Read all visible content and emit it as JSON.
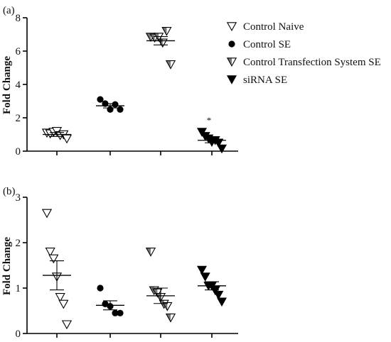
{
  "legend": [
    {
      "label": "Control Naive",
      "marker": "triangle-down-open"
    },
    {
      "label": "Control SE",
      "marker": "circle-filled"
    },
    {
      "label": "Control Transfection System SE",
      "marker": "triangle-down-half"
    },
    {
      "label": "siRNA SE",
      "marker": "triangle-down-filled"
    }
  ],
  "chart_data": [
    {
      "panel": "(a)",
      "type": "scatter",
      "ylabel": "Fold Change",
      "ylim": [
        0,
        8
      ],
      "yticks": [
        0,
        2,
        4,
        6,
        8
      ],
      "grid": false,
      "legend_position": "top-right",
      "annotation": {
        "text": "*",
        "group": "siRNA SE"
      },
      "groups": [
        {
          "name": "Control Naive",
          "marker": "triangle-down-open",
          "values": [
            1.1,
            1.05,
            1.15,
            1.2,
            0.95,
            1.0,
            0.75
          ],
          "mean": 1.0,
          "sem": 0.12
        },
        {
          "name": "Control SE",
          "marker": "circle-filled",
          "values": [
            3.1,
            2.85,
            2.5,
            2.8,
            2.5
          ],
          "mean": 2.72,
          "sem": 0.13
        },
        {
          "name": "Control Transfection System SE",
          "marker": "triangle-down-half",
          "values": [
            6.85,
            6.8,
            6.85,
            6.5,
            7.2,
            5.2
          ],
          "mean": 6.62,
          "sem": 0.25
        },
        {
          "name": "siRNA SE",
          "marker": "triangle-down-filled",
          "values": [
            1.15,
            0.9,
            0.75,
            0.55,
            0.65,
            0.5,
            0.15
          ],
          "mean": 0.65,
          "sem": 0.15
        }
      ]
    },
    {
      "panel": "(b)",
      "type": "scatter",
      "ylabel": "Fold Change",
      "ylim": [
        0,
        3
      ],
      "yticks": [
        0,
        1,
        2,
        3
      ],
      "grid": false,
      "groups": [
        {
          "name": "Control Naive",
          "marker": "triangle-down-open",
          "values": [
            2.65,
            1.8,
            1.65,
            1.25,
            0.8,
            0.65,
            0.2
          ],
          "mean": 1.28,
          "sem": 0.32
        },
        {
          "name": "Control SE",
          "marker": "circle-filled",
          "values": [
            1.0,
            0.65,
            0.6,
            0.45,
            0.45
          ],
          "mean": 0.62,
          "sem": 0.1
        },
        {
          "name": "Control Transfection System SE",
          "marker": "triangle-down-half",
          "values": [
            1.8,
            0.95,
            0.9,
            0.8,
            0.65,
            0.6,
            0.35
          ],
          "mean": 0.83,
          "sem": 0.17
        },
        {
          "name": "siRNA SE",
          "marker": "triangle-down-filled",
          "values": [
            1.4,
            1.25,
            1.05,
            1.05,
            0.95,
            0.85,
            0.7
          ],
          "mean": 1.05,
          "sem": 0.09
        }
      ]
    }
  ]
}
